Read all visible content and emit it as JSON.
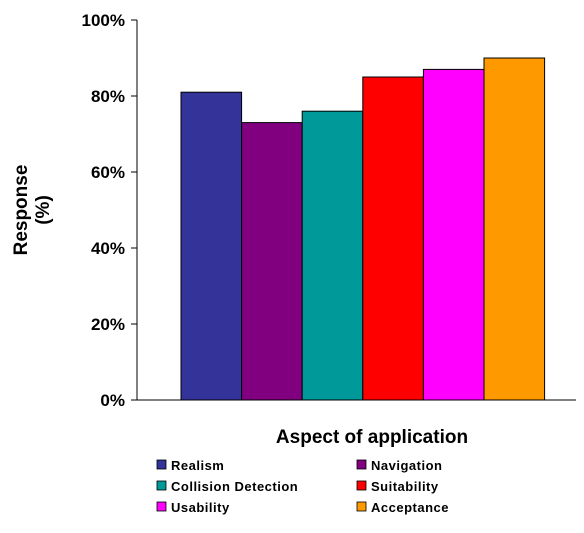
{
  "chart_data": {
    "type": "bar",
    "xlabel": "Aspect of application",
    "ylabel_line1": "Response",
    "ylabel_line2": "(%)",
    "ylim": [
      0,
      100
    ],
    "yticks": [
      "0%",
      "20%",
      "40%",
      "60%",
      "80%",
      "100%"
    ],
    "grid": false,
    "legend_position": "bottom",
    "series": [
      {
        "name": "Realism",
        "value": 81,
        "color": "#333399"
      },
      {
        "name": "Navigation",
        "value": 73,
        "color": "#800080"
      },
      {
        "name": "Collision Detection",
        "value": 76,
        "color": "#009999"
      },
      {
        "name": "Suitability",
        "value": 85,
        "color": "#ff0000"
      },
      {
        "name": "Usability",
        "value": 87,
        "color": "#ff00ff"
      },
      {
        "name": "Acceptance",
        "value": 90,
        "color": "#ff9900"
      }
    ]
  }
}
